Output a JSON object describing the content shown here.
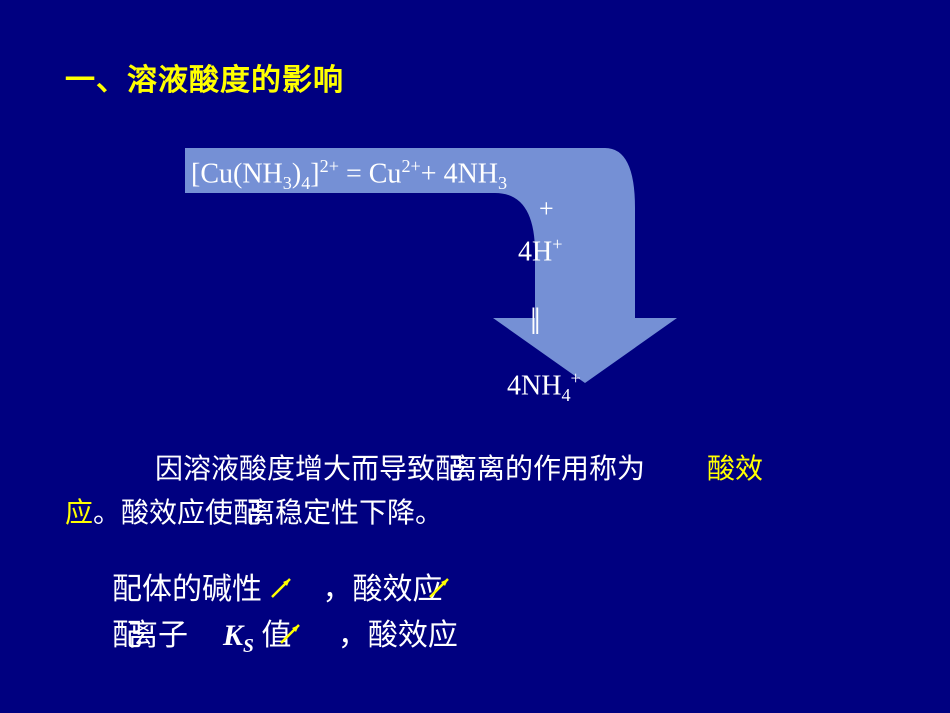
{
  "heading": "一、溶液酸度的影响",
  "equation": {
    "line1_html": "[Cu(NH<sub>3</sub>)<sub>4</sub>]<sup>2+</sup> = Cu<sup>2+</sup>+ 4NH<sub>3</sub>",
    "plus": "+",
    "h_html": "4H<sup>+</sup>",
    "bars": "‖",
    "nh4_html": "4NH<sub>4</sub><sup>+</sup>"
  },
  "para1_a": "因溶液酸度增大而导致配",
  "para1_b": "离的作用称为",
  "para1_c": "离",
  "acid_effect_label": "酸效",
  "para2_a": "应",
  "para2_b": "。酸效应使配",
  "para2_c": "离稳定性下降。",
  "rel1_a": "配体的碱性",
  "rel1_b": "，酸效应",
  "rel2_a": "配",
  "rel2_b": "离子",
  "rel2_ks_html": "<i>K</i><sub>S</sub>",
  "rel2_c": " 值",
  "rel2_d": "，酸效应",
  "arrow_color": "#8aa9e4",
  "small_arrow_color": "#ffff00"
}
